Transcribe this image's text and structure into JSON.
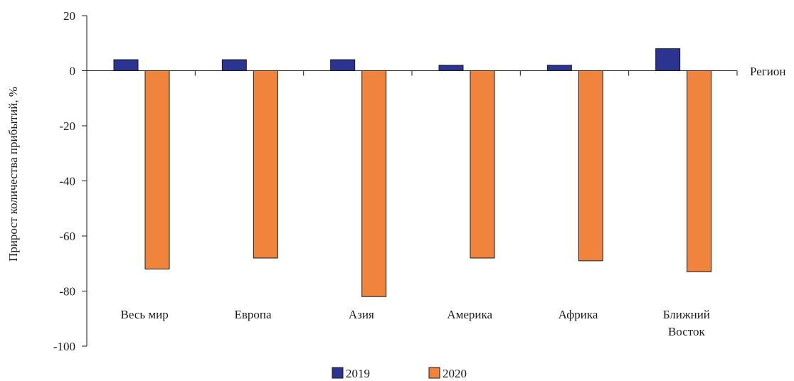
{
  "chart_data": {
    "type": "bar",
    "title": "",
    "xlabel": "Регион",
    "ylabel": "Прирост количества прибытий, %",
    "categories": [
      [
        "Весь мир"
      ],
      [
        "Европа"
      ],
      [
        "Азия"
      ],
      [
        "Америка"
      ],
      [
        "Африка"
      ],
      [
        "Ближний",
        "Восток"
      ]
    ],
    "series": [
      {
        "name": "2019",
        "color": "#2b3491",
        "values": [
          4,
          4,
          4,
          2,
          2,
          8
        ]
      },
      {
        "name": "2020",
        "color": "#f0843c",
        "values": [
          -72,
          -68,
          -82,
          -68,
          -69,
          -73
        ]
      }
    ],
    "ylim": [
      -100,
      20
    ],
    "yticks": [
      "20",
      "0",
      "-20",
      "-40",
      "-60",
      "-80",
      "-100"
    ],
    "grid": false,
    "legend": "bottom-center"
  }
}
